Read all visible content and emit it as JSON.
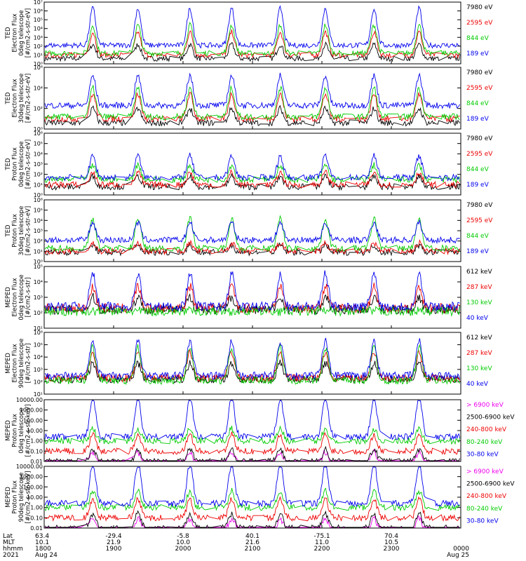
{
  "chart_data": [
    {
      "type": "line",
      "panel": "ted-e-0deg",
      "ylabel": [
        "TED",
        "Electron Flux",
        "0deg telescope",
        "[#/cm2-s-str-eV]"
      ],
      "yscale": "log",
      "ylim": [
        1,
        10000000
      ],
      "yticks": [
        "10⁰",
        "10¹",
        "10²",
        "10³",
        "10⁴",
        "10⁵",
        "10⁶",
        "10⁷"
      ],
      "series": [
        {
          "name": "7980 eV",
          "color": "#000000",
          "base": 0.6,
          "peak": 2.2
        },
        {
          "name": "2595 eV",
          "color": "#ee0000",
          "base": 1.0,
          "peak": 3.6
        },
        {
          "name": "844 eV",
          "color": "#00cc00",
          "base": 1.2,
          "peak": 4.4
        },
        {
          "name": "189 eV",
          "color": "#0000ee",
          "base": 2.1,
          "peak": 6.3
        }
      ]
    },
    {
      "type": "line",
      "panel": "ted-e-30deg",
      "ylabel": [
        "TED",
        "Electron Flux",
        "30deg telescope",
        "[#/cm2-s-str-eV]"
      ],
      "yscale": "log",
      "ylim": [
        1,
        1000000
      ],
      "yticks": [
        "10⁰",
        "10²",
        "10⁴",
        "10⁶"
      ],
      "series": [
        {
          "name": "7980 eV",
          "color": "#000000",
          "base": 0.6,
          "peak": 2.0
        },
        {
          "name": "2595 eV",
          "color": "#ee0000",
          "base": 1.0,
          "peak": 3.4
        },
        {
          "name": "844 eV",
          "color": "#00cc00",
          "base": 1.2,
          "peak": 4.0
        },
        {
          "name": "189 eV",
          "color": "#0000ee",
          "base": 2.3,
          "peak": 5.2
        }
      ]
    },
    {
      "type": "line",
      "panel": "ted-p-0deg",
      "ylabel": [
        "TED",
        "Proton Flux",
        "0deg telescope",
        "[#/cm2-s-str-eV]"
      ],
      "yscale": "log",
      "ylim": [
        1,
        1000000
      ],
      "yticks": [
        "10⁰",
        "10¹",
        "10²",
        "10³",
        "10⁴",
        "10⁵",
        "10⁶"
      ],
      "series": [
        {
          "name": "7980 eV",
          "color": "#000000",
          "base": 0.8,
          "peak": 1.8
        },
        {
          "name": "2595 eV",
          "color": "#ee0000",
          "base": 1.0,
          "peak": 2.2
        },
        {
          "name": "844 eV",
          "color": "#00cc00",
          "base": 1.5,
          "peak": 2.9
        },
        {
          "name": "189 eV",
          "color": "#0000ee",
          "base": 1.7,
          "peak": 3.8
        }
      ]
    },
    {
      "type": "line",
      "panel": "ted-p-30deg",
      "ylabel": [
        "TED",
        "Proton Flux",
        "30deg telescope",
        "[#/cm2-s-str-eV]"
      ],
      "yscale": "log",
      "ylim": [
        1,
        1000000
      ],
      "yticks": [
        "10⁰",
        "10¹",
        "10²",
        "10³",
        "10⁴",
        "10⁵",
        "10⁶"
      ],
      "series": [
        {
          "name": "7980 eV",
          "color": "#000000",
          "base": 0.9,
          "peak": 1.6
        },
        {
          "name": "2595 eV",
          "color": "#ee0000",
          "base": 1.0,
          "peak": 1.8
        },
        {
          "name": "844 eV",
          "color": "#00cc00",
          "base": 1.3,
          "peak": 4.2
        },
        {
          "name": "189 eV",
          "color": "#0000ee",
          "base": 2.1,
          "peak": 3.8
        }
      ]
    },
    {
      "type": "line",
      "panel": "meped-e-0deg",
      "ylabel": [
        "MEPED",
        "Electron Flux",
        "0deg telescope",
        "[#/cm2-s-str]"
      ],
      "yscale": "log",
      "ylim": [
        10,
        100000
      ],
      "yticks": [
        "10¹",
        "10²",
        "10³",
        "10⁴",
        "10⁵"
      ],
      "series": [
        {
          "name": "612 keV",
          "color": "#000000",
          "base": 2.2,
          "peak": 3.0
        },
        {
          "name": "287 keV",
          "color": "#ee0000",
          "base": 2.3,
          "peak": 3.7
        },
        {
          "name": "130 keV",
          "color": "#00cc00",
          "base": 2.1,
          "peak": 2.1
        },
        {
          "name": "40 keV",
          "color": "#0000ee",
          "base": 2.4,
          "peak": 4.5
        }
      ]
    },
    {
      "type": "line",
      "panel": "meped-e-90deg",
      "ylabel": [
        "MEPED",
        "Electron Flux",
        "90deg telescope",
        "[#/cm2-s-str]"
      ],
      "yscale": "log",
      "ylim": [
        10,
        1000000
      ],
      "yticks": [
        "10¹",
        "10²",
        "10³",
        "10⁴",
        "10⁵",
        "10⁶"
      ],
      "series": [
        {
          "name": "612 keV",
          "color": "#000000",
          "base": 2.2,
          "peak": 3.5
        },
        {
          "name": "287 keV",
          "color": "#ee0000",
          "base": 2.3,
          "peak": 4.4
        },
        {
          "name": "130 keV",
          "color": "#00cc00",
          "base": 2.1,
          "peak": 4.8
        },
        {
          "name": "40 keV",
          "color": "#0000ee",
          "base": 2.5,
          "peak": 5.3
        }
      ]
    },
    {
      "type": "line",
      "panel": "meped-p-0deg",
      "ylabel": [
        "MEPED",
        "Proton Flux",
        "0deg telescope",
        "[#/cm2-s-str-keV]"
      ],
      "yscale": "log",
      "ylim": [
        0.01,
        10000
      ],
      "yticks": [
        "0.01",
        "0.10",
        "1.00",
        "10.00",
        "100.00",
        "1000.00",
        "10000.00"
      ],
      "series": [
        {
          "name": "> 6900 keV",
          "color": "#ee00ee",
          "base": -2.2,
          "peak": -1.1
        },
        {
          "name": "2500-6900 keV",
          "color": "#000000",
          "base": -2.0,
          "peak": -0.8
        },
        {
          "name": "240-800 keV",
          "color": "#ee0000",
          "base": -1.0,
          "peak": 0.6
        },
        {
          "name": "80-240 keV",
          "color": "#00cc00",
          "base": 0.0,
          "peak": 1.2
        },
        {
          "name": "30-80 keV",
          "color": "#0000ee",
          "base": 0.4,
          "peak": 4.2
        }
      ]
    },
    {
      "type": "line",
      "panel": "meped-p-90deg",
      "ylabel": [
        "MEPED",
        "Proton Flux",
        "90deg telescope",
        "[#/cm2-s-str-keV]"
      ],
      "yscale": "log",
      "ylim": [
        0.01,
        10000
      ],
      "yticks": [
        "0.01",
        "0.10",
        "1.00",
        "10.00",
        "100.00",
        "1000.00",
        "10000.00"
      ],
      "series": [
        {
          "name": "> 6900 keV",
          "color": "#ee00ee",
          "base": -2.2,
          "peak": -1.1
        },
        {
          "name": "2500-6900 keV",
          "color": "#000000",
          "base": -2.0,
          "peak": -0.6
        },
        {
          "name": "240-800 keV",
          "color": "#ee0000",
          "base": -1.0,
          "peak": 0.8
        },
        {
          "name": "80-240 keV",
          "color": "#00cc00",
          "base": 0.0,
          "peak": 1.6
        },
        {
          "name": "30-80 keV",
          "color": "#0000ee",
          "base": 0.4,
          "peak": 4.3
        }
      ]
    }
  ],
  "x_axis": {
    "row_labels": [
      "Lat",
      "MLT",
      "hhmm",
      "2021"
    ],
    "columns": [
      {
        "lat": "63.4",
        "mlt": "10.1",
        "hhmm": "1800",
        "date": "Aug 24"
      },
      {
        "lat": "-29.4",
        "mlt": "21.9",
        "hhmm": "1900",
        "date": ""
      },
      {
        "lat": "-5.8",
        "mlt": "10.0",
        "hhmm": "2000",
        "date": ""
      },
      {
        "lat": "40.1",
        "mlt": "21.6",
        "hhmm": "2100",
        "date": ""
      },
      {
        "lat": "-75.1",
        "mlt": "11.0",
        "hhmm": "2200",
        "date": ""
      },
      {
        "lat": "70.4",
        "mlt": "10.5",
        "hhmm": "2300",
        "date": ""
      },
      {
        "lat": "",
        "mlt": "",
        "hhmm": "0000",
        "date": "Aug 25"
      }
    ]
  },
  "orbit_peaks_hours": [
    0.7,
    1.35,
    2.1,
    2.7,
    3.4,
    4.05,
    4.75,
    5.4
  ],
  "colors": {
    "black": "#000000",
    "red": "#ee0000",
    "green": "#00cc00",
    "blue": "#0000ee",
    "magenta": "#ee00ee"
  }
}
